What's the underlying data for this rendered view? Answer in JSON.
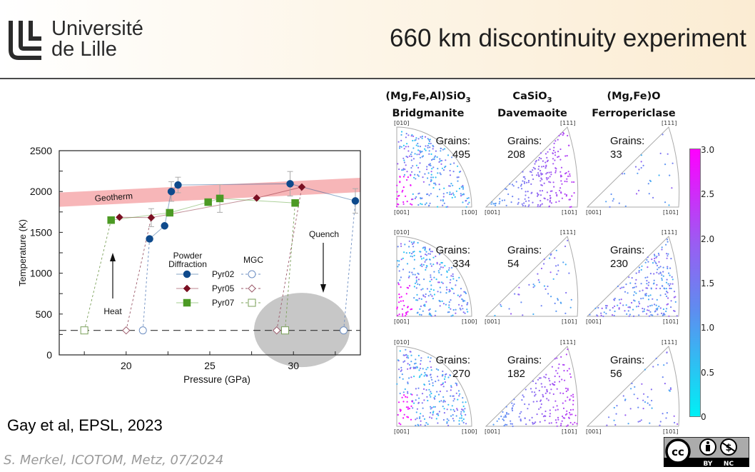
{
  "header": {
    "logo": {
      "line1": "Université",
      "line2": "de Lille",
      "icon": "university-lille-logo-icon"
    },
    "title": "660 km discontinuity experiment"
  },
  "citation": "Gay et al, EPSL, 2023",
  "footer": "S. Merkel, ICOTOM, Metz, 07/2024",
  "license": {
    "icon": "cc-by-nc-icon",
    "labels": [
      "BY",
      "NC"
    ]
  },
  "chart_data": [
    {
      "type": "scatter",
      "title": "",
      "xlabel": "Pressure (GPa)",
      "ylabel": "Temperature (K)",
      "xlim": [
        16,
        34
      ],
      "ylim": [
        0,
        2500
      ],
      "xticks": [
        20,
        25,
        30
      ],
      "yticks": [
        0,
        500,
        1000,
        1500,
        2000,
        2500
      ],
      "annotations": [
        {
          "text": "Geotherm",
          "type": "band",
          "from": [
            16,
            1900
          ],
          "to": [
            34,
            2080
          ],
          "color": "#f7b6b8"
        },
        {
          "text": "Heat",
          "type": "arrow-up",
          "at": [
            19.2,
            1200
          ]
        },
        {
          "text": "Quench",
          "type": "arrow-down",
          "at": [
            31.8,
            750
          ]
        },
        {
          "text": "",
          "type": "ellipse",
          "center": [
            30.5,
            305
          ],
          "rx": 3.3,
          "ry": 90,
          "color": "#bdbdbd"
        },
        {
          "text": "",
          "type": "dashed-hline",
          "y": 300
        }
      ],
      "legend": {
        "group_titles": [
          "Powder Diffraction",
          "MGC"
        ],
        "entries": [
          "Pyr02",
          "Pyr05",
          "Pyr07"
        ]
      },
      "series": [
        {
          "name": "Pyr02 Powder Diffraction",
          "color": "#0e4a8c",
          "marker": "circle-filled",
          "points": [
            [
              21.4,
              1420
            ],
            [
              22.3,
              1580
            ],
            [
              22.7,
              2000
            ],
            [
              23.1,
              2080
            ],
            [
              29.8,
              2095
            ],
            [
              33.7,
              1885
            ]
          ]
        },
        {
          "name": "Pyr05 Powder Diffraction",
          "color": "#7a0f22",
          "marker": "diamond-filled",
          "points": [
            [
              19.6,
              1685
            ],
            [
              21.5,
              1680
            ],
            [
              27.8,
              1920
            ],
            [
              30.5,
              2055
            ]
          ]
        },
        {
          "name": "Pyr07 Powder Diffraction",
          "color": "#4c9a24",
          "marker": "square-filled",
          "points": [
            [
              19.1,
              1650
            ],
            [
              22.6,
              1740
            ],
            [
              24.9,
              1870
            ],
            [
              25.6,
              1915
            ],
            [
              30.1,
              1860
            ]
          ]
        },
        {
          "name": "Pyr02 MGC",
          "color": "#6e8fc2",
          "marker": "circle-open",
          "points": [
            [
              21.0,
              300
            ],
            [
              33.0,
              300
            ]
          ]
        },
        {
          "name": "Pyr05 MGC",
          "color": "#9b5a6a",
          "marker": "diamond-open",
          "points": [
            [
              20.0,
              300
            ],
            [
              29.0,
              300
            ]
          ]
        },
        {
          "name": "Pyr07 MGC",
          "color": "#7ba05a",
          "marker": "square-open",
          "points": [
            [
              17.5,
              300
            ],
            [
              29.5,
              300
            ]
          ]
        }
      ]
    },
    {
      "type": "scatter",
      "title": "Inverse pole figures",
      "columns": [
        {
          "formula": "(Mg,Fe,Al)SiO3",
          "name": "Bridgmanite",
          "corners": [
            "[010]",
            "[001]",
            "[100]"
          ],
          "grains": [
            495,
            334,
            270
          ]
        },
        {
          "formula": "CaSiO3",
          "name": "Davemaoite",
          "corners": [
            "[111]",
            "[001]",
            "[101]"
          ],
          "grains": [
            208,
            54,
            182
          ]
        },
        {
          "formula": "(Mg,Fe)O",
          "name": "Ferropericlase",
          "corners": [
            "[111]",
            "[001]",
            "[101]"
          ],
          "grains": [
            33,
            230,
            56
          ]
        }
      ],
      "colorbar": {
        "min": 0,
        "max": 3.0,
        "ticks": [
          "3.0",
          "2.5",
          "2.0",
          "1.5",
          "1.0",
          "0.5",
          "0"
        ],
        "colors": [
          "#00f0f5",
          "#ff00ff"
        ]
      }
    }
  ],
  "ipf": {
    "titles": [
      {
        "l1": "(Mg,Fe,Al)SiO",
        "sub": "3",
        "l2": "Bridgmanite"
      },
      {
        "l1": "CaSiO",
        "sub": "3",
        "l2": "Davemaoite"
      },
      {
        "l1": "(Mg,Fe)O",
        "sub": "",
        "l2": "Ferropericlase"
      }
    ],
    "grains_label": "Grains:",
    "grains": [
      [
        "495",
        "208",
        "33"
      ],
      [
        "334",
        "54",
        "230"
      ],
      [
        "270",
        "182",
        "56"
      ]
    ]
  }
}
